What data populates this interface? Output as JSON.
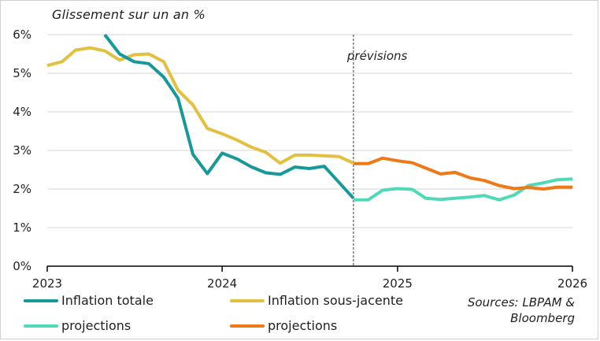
{
  "chart_data": {
    "type": "line",
    "ylabel": "Glissement sur un an %",
    "y_unit": "%",
    "ylim": [
      0,
      6
    ],
    "xlim": [
      "2023-01-01",
      "2026-01-01"
    ],
    "y_ticks": [
      "0%",
      "1%",
      "2%",
      "3%",
      "4%",
      "5%",
      "6%"
    ],
    "x_ticks": [
      "2023",
      "2024",
      "2025",
      "2026"
    ],
    "grid": "horizontal",
    "annotation": {
      "text": "prévisions",
      "x": "2024-10-01",
      "style": "dashed vertical line"
    },
    "legend_position": "bottom",
    "series": [
      {
        "name": "Inflation totale",
        "color": "#17999a",
        "points": [
          [
            "2023-05-01",
            6.1
          ],
          [
            "2023-06-01",
            5.5
          ],
          [
            "2023-07-01",
            5.3
          ],
          [
            "2023-08-01",
            5.25
          ],
          [
            "2023-09-01",
            4.9
          ],
          [
            "2023-10-01",
            4.35
          ],
          [
            "2023-11-01",
            2.9
          ],
          [
            "2023-12-01",
            2.4
          ],
          [
            "2024-01-01",
            2.93
          ],
          [
            "2024-02-01",
            2.78
          ],
          [
            "2024-03-01",
            2.58
          ],
          [
            "2024-04-01",
            2.42
          ],
          [
            "2024-05-01",
            2.38
          ],
          [
            "2024-06-01",
            2.57
          ],
          [
            "2024-07-01",
            2.53
          ],
          [
            "2024-08-01",
            2.59
          ],
          [
            "2024-09-01",
            2.17
          ],
          [
            "2024-10-01",
            1.76
          ]
        ]
      },
      {
        "name": "Inflation sous-jacente",
        "color": "#e2c040",
        "points": [
          [
            "2023-01-01",
            5.2
          ],
          [
            "2023-02-01",
            5.3
          ],
          [
            "2023-03-01",
            5.6
          ],
          [
            "2023-04-01",
            5.66
          ],
          [
            "2023-05-01",
            5.58
          ],
          [
            "2023-06-01",
            5.34
          ],
          [
            "2023-07-01",
            5.48
          ],
          [
            "2023-08-01",
            5.5
          ],
          [
            "2023-09-01",
            5.3
          ],
          [
            "2023-10-01",
            4.56
          ],
          [
            "2023-11-01",
            4.18
          ],
          [
            "2023-12-01",
            3.57
          ],
          [
            "2024-01-01",
            3.43
          ],
          [
            "2024-02-01",
            3.27
          ],
          [
            "2024-03-01",
            3.09
          ],
          [
            "2024-04-01",
            2.95
          ],
          [
            "2024-05-01",
            2.67
          ],
          [
            "2024-06-01",
            2.88
          ],
          [
            "2024-07-01",
            2.88
          ],
          [
            "2024-08-01",
            2.86
          ],
          [
            "2024-09-01",
            2.84
          ],
          [
            "2024-10-01",
            2.67
          ]
        ]
      },
      {
        "name": "projections",
        "color": "#4fd9b6",
        "points": [
          [
            "2024-10-01",
            1.72
          ],
          [
            "2024-11-01",
            1.72
          ],
          [
            "2024-12-01",
            1.97
          ],
          [
            "2025-01-01",
            2.01
          ],
          [
            "2025-02-01",
            1.99
          ],
          [
            "2025-03-01",
            1.76
          ],
          [
            "2025-04-01",
            1.73
          ],
          [
            "2025-05-01",
            1.76
          ],
          [
            "2025-06-01",
            1.79
          ],
          [
            "2025-07-01",
            1.83
          ],
          [
            "2025-08-01",
            1.72
          ],
          [
            "2025-09-01",
            1.84
          ],
          [
            "2025-10-01",
            2.09
          ],
          [
            "2025-11-01",
            2.16
          ],
          [
            "2025-12-01",
            2.24
          ],
          [
            "2026-01-01",
            2.26
          ]
        ]
      },
      {
        "name": "projections",
        "color": "#ef7817",
        "points": [
          [
            "2024-10-01",
            2.66
          ],
          [
            "2024-11-01",
            2.66
          ],
          [
            "2024-12-01",
            2.8
          ],
          [
            "2025-01-01",
            2.73
          ],
          [
            "2025-02-01",
            2.68
          ],
          [
            "2025-03-01",
            2.54
          ],
          [
            "2025-04-01",
            2.39
          ],
          [
            "2025-05-01",
            2.43
          ],
          [
            "2025-06-01",
            2.29
          ],
          [
            "2025-07-01",
            2.22
          ],
          [
            "2025-08-01",
            2.09
          ],
          [
            "2025-09-01",
            2.01
          ],
          [
            "2025-10-01",
            2.04
          ],
          [
            "2025-11-01",
            2.0
          ],
          [
            "2025-12-01",
            2.05
          ],
          [
            "2026-01-01",
            2.05
          ]
        ]
      }
    ]
  },
  "sources": [
    "Sources: LBPAM &",
    "Bloomberg"
  ]
}
